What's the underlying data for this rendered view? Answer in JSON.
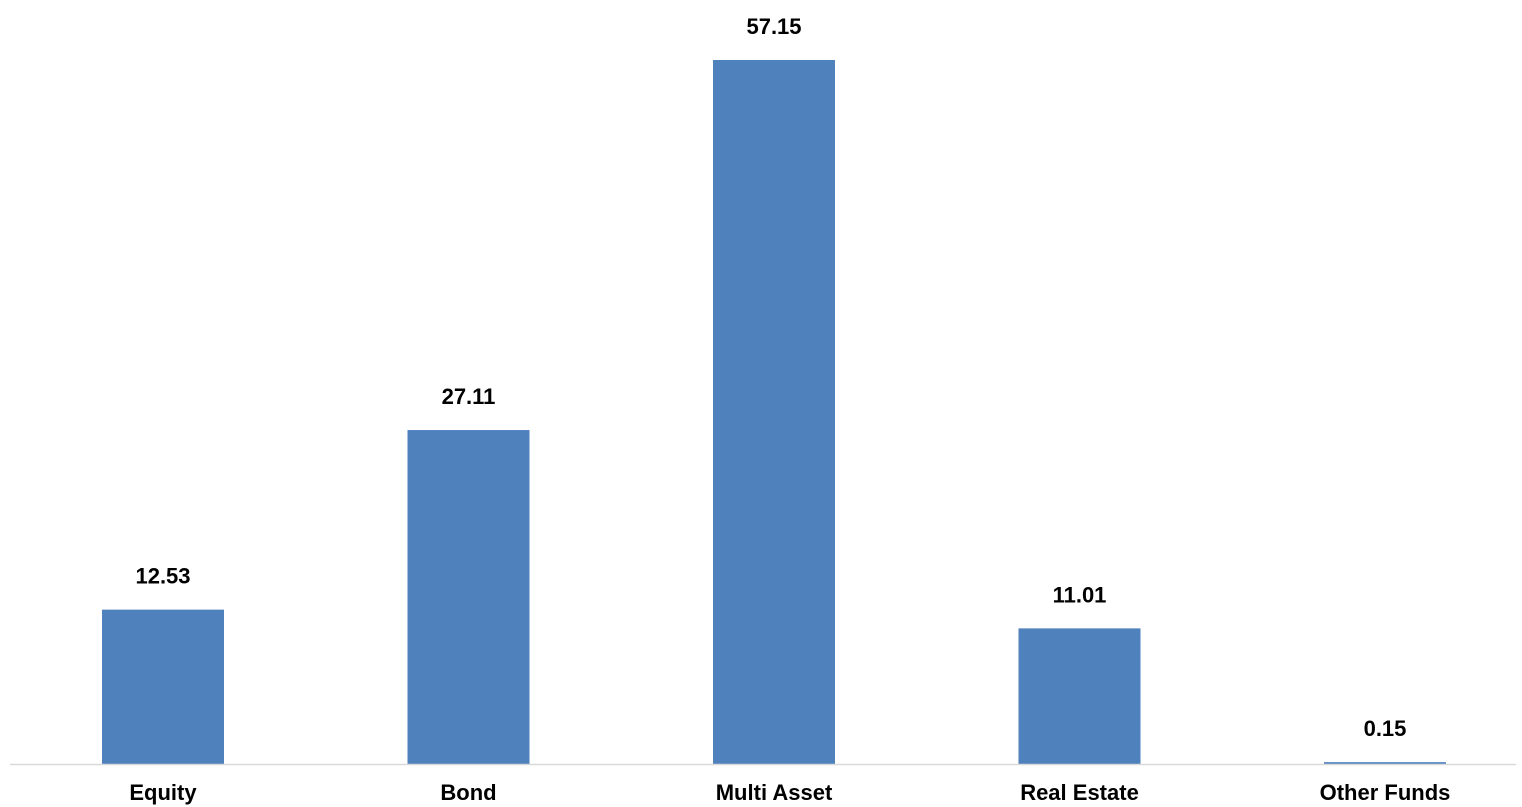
{
  "chart_data": {
    "type": "bar",
    "title": "",
    "xlabel": "",
    "ylabel": "",
    "categories": [
      "Equity",
      "Bond",
      "Multi Asset",
      "Real Estate",
      "Other Funds"
    ],
    "values": [
      12.53,
      27.11,
      57.15,
      11.01,
      0.15
    ],
    "value_labels": [
      "12.53",
      "27.11",
      "57.15",
      "11.01",
      "0.15"
    ],
    "ylim": [
      0,
      57.15
    ],
    "grid": false,
    "legend": "none",
    "colors": {
      "bar": "#4f81bd",
      "axis": "#d9d9d9",
      "text": "#000000"
    }
  }
}
